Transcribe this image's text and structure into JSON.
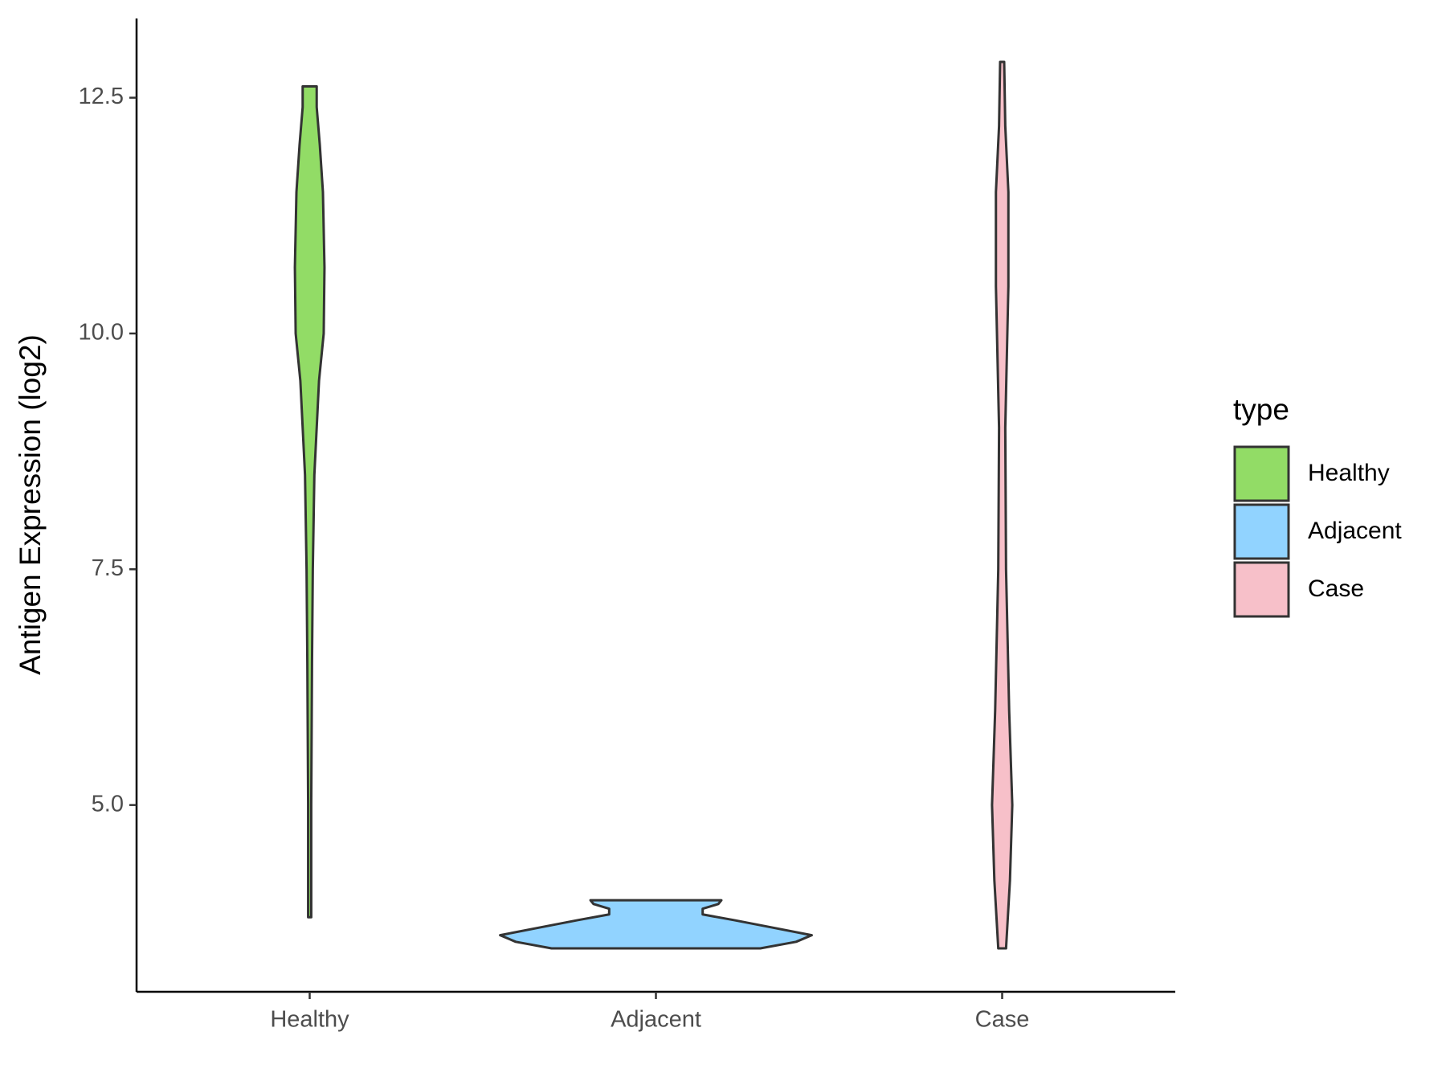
{
  "chart_data": {
    "type": "violin",
    "y_label": "Antigen Expression (log2)",
    "legend_title": "type",
    "legend_position": "right",
    "categories": [
      "Healthy",
      "Adjacent",
      "Case"
    ],
    "ylim": [
      3.02,
      13.34
    ],
    "yticks": [
      {
        "value": 5,
        "label": "5.0"
      },
      {
        "value": 7.5,
        "label": "7.5"
      },
      {
        "value": 10,
        "label": "10.0"
      },
      {
        "value": 12.5,
        "label": "12.5"
      }
    ],
    "series": [
      {
        "name": "Healthy",
        "color": "#92dc66",
        "y": [
          3.81,
          5.0,
          6.5,
          7.5,
          8.5,
          9.5,
          10.0,
          10.7,
          11.5,
          12.0,
          12.4,
          12.62
        ],
        "density": [
          0.01,
          0.01,
          0.015,
          0.02,
          0.03,
          0.06,
          0.09,
          0.095,
          0.085,
          0.065,
          0.045,
          0.045
        ]
      },
      {
        "name": "Adjacent",
        "color": "#91d3ff",
        "y": [
          3.48,
          3.55,
          3.62,
          3.7,
          3.78,
          3.84,
          3.9,
          3.95,
          3.99
        ],
        "density": [
          0.67,
          0.9,
          1.0,
          0.75,
          0.5,
          0.3,
          0.3,
          0.4,
          0.42
        ]
      },
      {
        "name": "Case",
        "color": "#f7c0c9",
        "y": [
          3.48,
          4.2,
          5.0,
          6.0,
          7.5,
          9.0,
          10.5,
          11.5,
          12.2,
          12.88
        ],
        "density": [
          0.025,
          0.05,
          0.065,
          0.045,
          0.025,
          0.02,
          0.04,
          0.04,
          0.02,
          0.013
        ]
      }
    ]
  }
}
